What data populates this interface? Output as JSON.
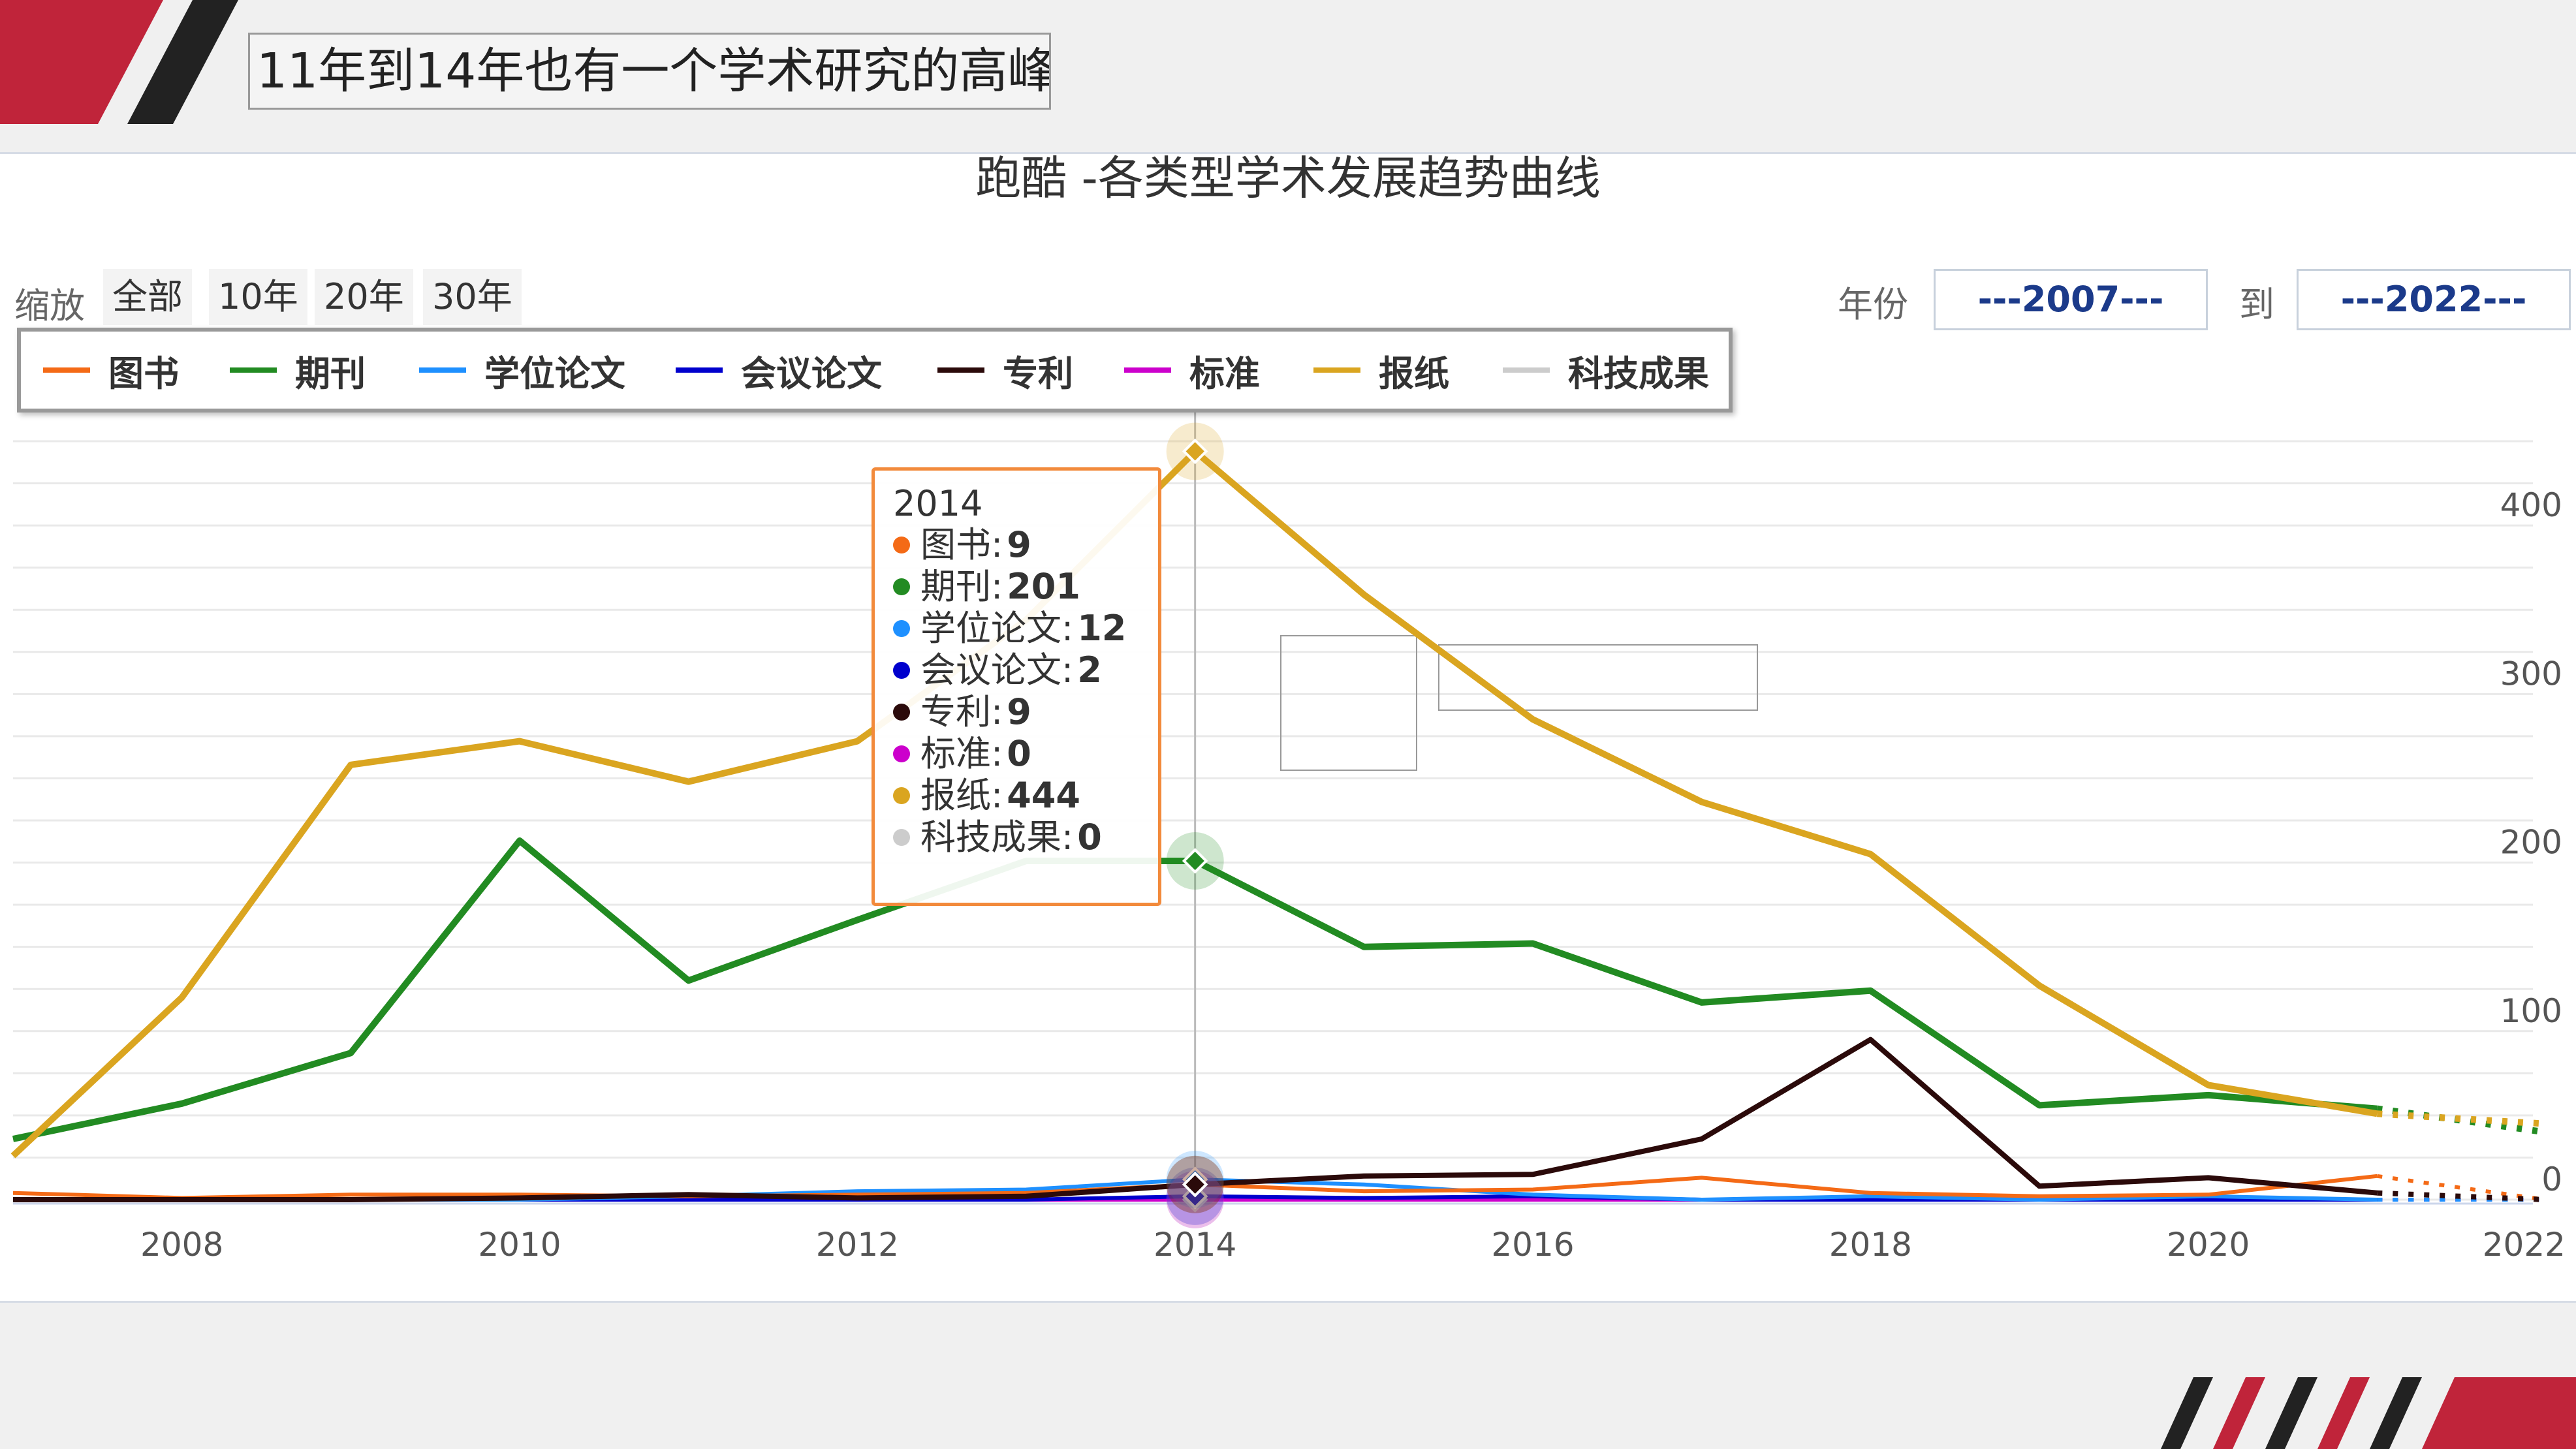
{
  "slide": {
    "title": "11年到14年也有一个学术研究的高峰",
    "accent_color": "#c0243a"
  },
  "toolbar": {
    "zoom_label": "缩放",
    "zoom_buttons": [
      "全部",
      "10年",
      "20年",
      "30年"
    ],
    "year_label": "年份",
    "from_year": "---2007---",
    "to_label": "到",
    "to_year": "---2022---"
  },
  "tooltip": {
    "year": "2014",
    "rows": [
      {
        "name": "图书",
        "value": "9",
        "color": "#f46a16"
      },
      {
        "name": "期刊",
        "value": "201",
        "color": "#228b22"
      },
      {
        "name": "学位论文",
        "value": "12",
        "color": "#1e90ff"
      },
      {
        "name": "会议论文",
        "value": "2",
        "color": "#0000cd"
      },
      {
        "name": "专利",
        "value": "9",
        "color": "#2b0a0a"
      },
      {
        "name": "标准",
        "value": "0",
        "color": "#cc00cc"
      },
      {
        "name": "报纸",
        "value": "444",
        "color": "#daa520"
      },
      {
        "name": "科技成果",
        "value": "0",
        "color": "#cccccc"
      }
    ]
  },
  "chart_data": {
    "type": "line",
    "title": "跑酷 -各类型学术发展趋势曲线",
    "xlabel": "",
    "ylabel": "",
    "xlim": [
      2007,
      2022
    ],
    "ylim": [
      0,
      450
    ],
    "x_ticks": [
      "2008",
      "2010",
      "2012",
      "2014",
      "2016",
      "2018",
      "2020",
      "2022"
    ],
    "y_ticks": [
      "0",
      "100",
      "200",
      "300",
      "400"
    ],
    "grid": true,
    "legend_position": "top-left",
    "x": [
      2007,
      2008,
      2009,
      2010,
      2011,
      2012,
      2013,
      2014,
      2015,
      2016,
      2017,
      2018,
      2019,
      2020,
      2021,
      2022
    ],
    "highlight_x": 2014,
    "series": [
      {
        "name": "图书",
        "color": "#f46a16",
        "width": 3,
        "values": [
          4,
          1,
          3,
          3,
          2,
          3,
          4,
          9,
          5,
          6,
          13,
          4,
          2,
          3,
          14,
          0
        ]
      },
      {
        "name": "期刊",
        "color": "#228b22",
        "width": 5,
        "values": [
          36,
          57,
          87,
          213,
          130,
          166,
          201,
          201,
          150,
          152,
          117,
          124,
          56,
          62,
          54,
          40
        ]
      },
      {
        "name": "学位论文",
        "color": "#1e90ff",
        "width": 3,
        "values": [
          0,
          0,
          0,
          0,
          2,
          5,
          6,
          12,
          9,
          3,
          0,
          2,
          0,
          2,
          0,
          0
        ]
      },
      {
        "name": "会议论文",
        "color": "#0000cd",
        "width": 3,
        "values": [
          0,
          0,
          0,
          0,
          0,
          0,
          0,
          2,
          1,
          2,
          0,
          0,
          0,
          0,
          0,
          0
        ]
      },
      {
        "name": "专利",
        "color": "#2b0a0a",
        "width": 4,
        "values": [
          0,
          0,
          0,
          1,
          3,
          1,
          2,
          9,
          14,
          15,
          36,
          95,
          8,
          13,
          4,
          0
        ]
      },
      {
        "name": "标准",
        "color": "#cc00cc",
        "width": 3,
        "values": [
          0,
          0,
          0,
          0,
          0,
          0,
          0,
          0,
          0,
          0,
          0,
          0,
          0,
          0,
          0,
          0
        ]
      },
      {
        "name": "报纸",
        "color": "#daa520",
        "width": 5,
        "values": [
          26,
          120,
          258,
          272,
          248,
          272,
          344,
          444,
          359,
          285,
          236,
          205,
          127,
          68,
          51,
          45
        ]
      },
      {
        "name": "科技成果",
        "color": "#cccccc",
        "width": 3,
        "values": [
          0,
          0,
          0,
          0,
          0,
          0,
          0,
          0,
          0,
          0,
          0,
          0,
          0,
          0,
          0,
          0
        ]
      }
    ]
  }
}
